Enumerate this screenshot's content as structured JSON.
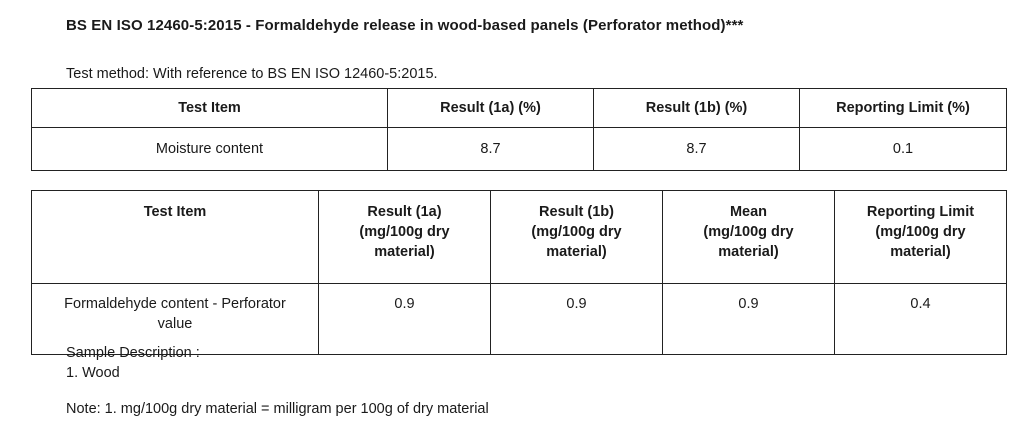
{
  "heading": "BS EN ISO 12460-5:2015 - Formaldehyde release in wood-based panels (Perforator method)***",
  "test_method": "Test method: With reference to BS EN ISO 12460-5:2015.",
  "table1": {
    "headers": [
      "Test Item",
      "Result (1a) (%)",
      "Result (1b) (%)",
      "Reporting Limit (%)"
    ],
    "rows": [
      [
        "Moisture content",
        "8.7",
        "8.7",
        "0.1"
      ]
    ]
  },
  "table2": {
    "headers": [
      "Test Item",
      "Result (1a)\n(mg/100g dry\nmaterial)",
      "Result (1b)\n(mg/100g dry\nmaterial)",
      "Mean\n(mg/100g dry\nmaterial)",
      "Reporting Limit\n(mg/100g dry\nmaterial)"
    ],
    "rows": [
      [
        "Formaldehyde content - Perforator\nvalue",
        "0.9",
        "0.9",
        "0.9",
        "0.4"
      ]
    ]
  },
  "sample_description": {
    "label": "Sample Description :",
    "items": [
      "1. Wood"
    ]
  },
  "note": "Note: 1. mg/100g dry material = milligram per 100g of dry material"
}
